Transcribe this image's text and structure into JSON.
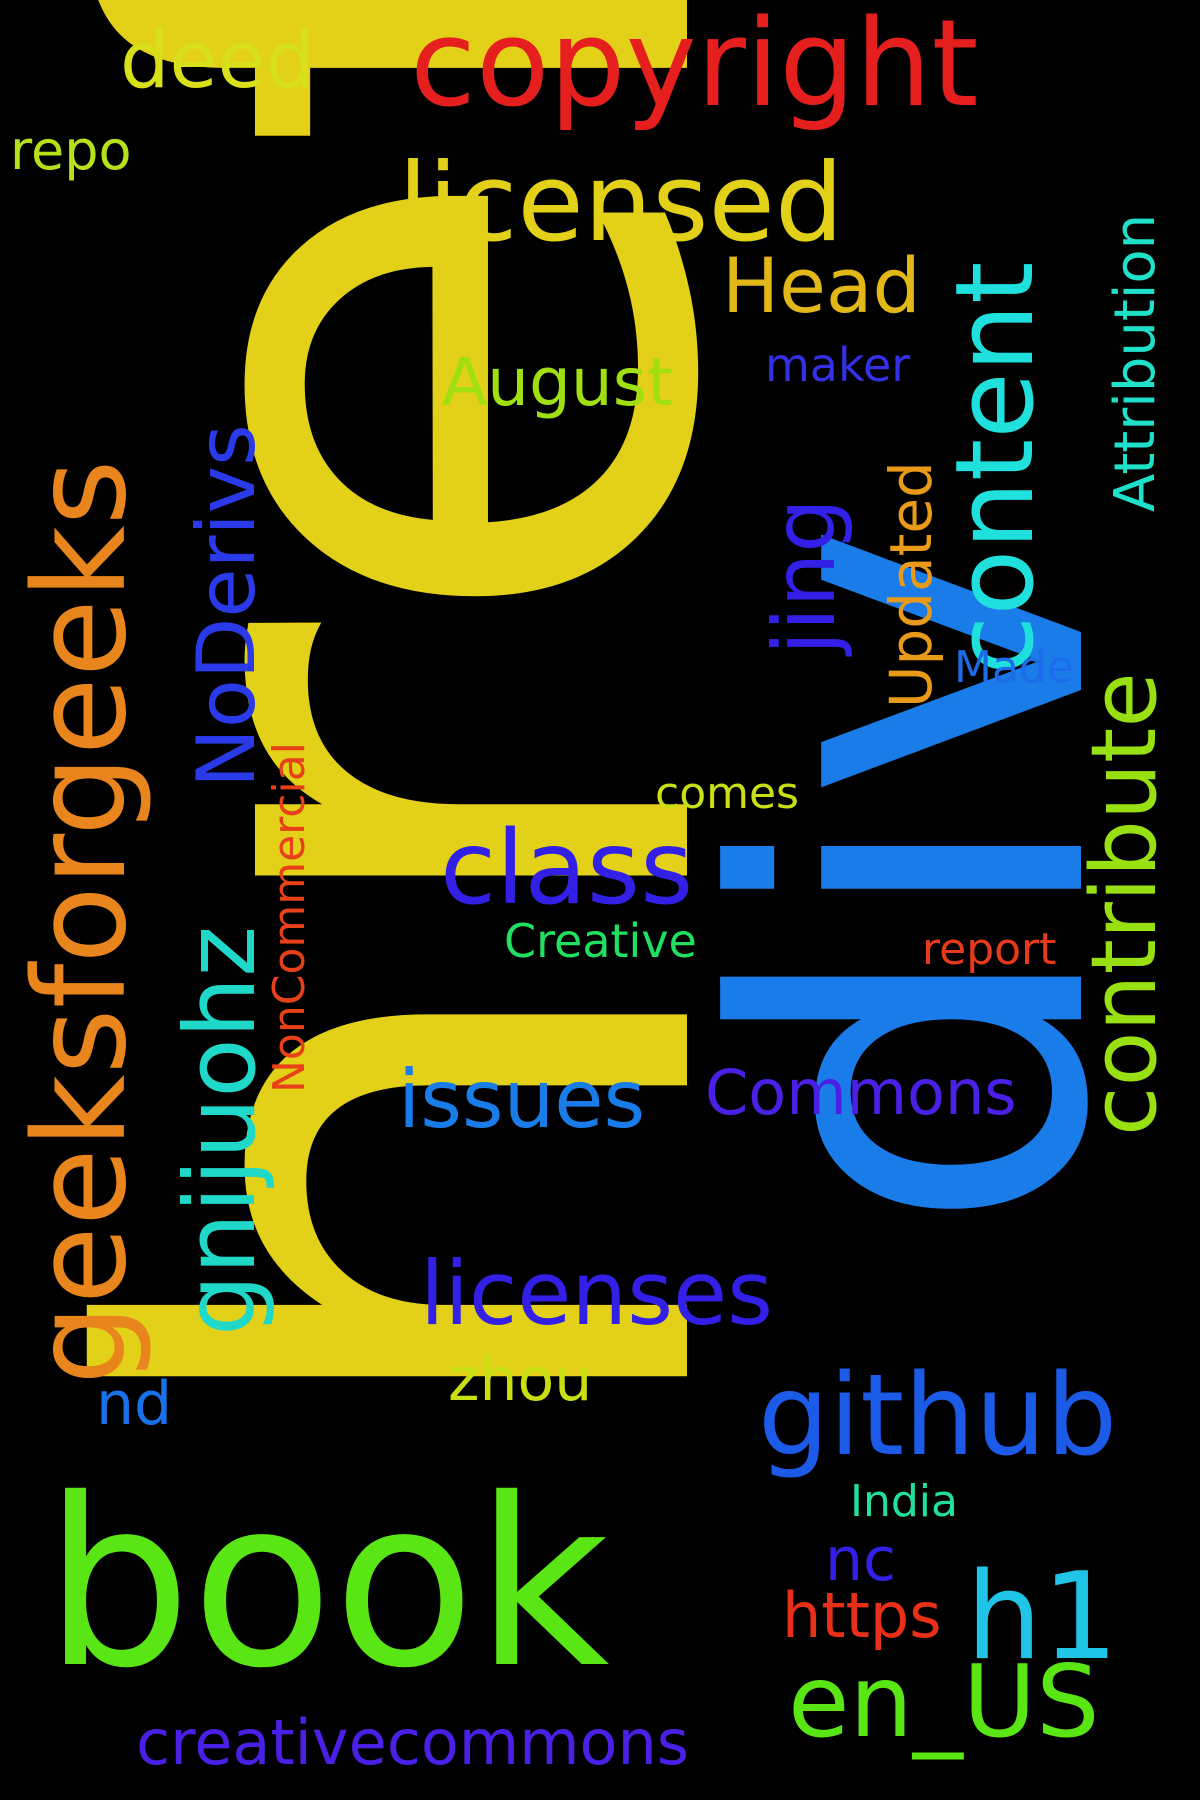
{
  "words": [
    {
      "text": "href",
      "color": "#e2d118",
      "rotated": true
    },
    {
      "text": "div",
      "color": "#1a7ce8",
      "rotated": true
    },
    {
      "text": "book",
      "color": "#5ae615",
      "rotated": false
    },
    {
      "text": "copyright",
      "color": "#e51e1e",
      "rotated": false
    },
    {
      "text": "geeksforgeeks",
      "color": "#e8861d",
      "rotated": true
    },
    {
      "text": "licensed",
      "color": "#e2d118",
      "rotated": false
    },
    {
      "text": "content",
      "color": "#1fe0dc",
      "rotated": true
    },
    {
      "text": "github",
      "color": "#1c5ae8",
      "rotated": false
    },
    {
      "text": "gnijuohz",
      "color": "#20d8c8",
      "rotated": true
    },
    {
      "text": "contribute",
      "color": "#98e012",
      "rotated": true
    },
    {
      "text": "en_US",
      "color": "#5ae615",
      "rotated": false
    },
    {
      "text": "class",
      "color": "#3320e6",
      "rotated": false
    },
    {
      "text": "licenses",
      "color": "#3320e6",
      "rotated": false
    },
    {
      "text": "h1",
      "color": "#1fc4e6",
      "rotated": false
    },
    {
      "text": "NoDerivs",
      "color": "#2a3ae8",
      "rotated": true
    },
    {
      "text": "Attribution",
      "color": "#1fe0c8",
      "rotated": true
    },
    {
      "text": "issues",
      "color": "#1a7ce8",
      "rotated": false
    },
    {
      "text": "deed",
      "color": "#d8e01a",
      "rotated": false
    },
    {
      "text": "creativecommons",
      "color": "#4a20e6",
      "rotated": false
    },
    {
      "text": "Head",
      "color": "#e2b818",
      "rotated": false
    },
    {
      "text": "jing",
      "color": "#3320e6",
      "rotated": true
    },
    {
      "text": "Commons",
      "color": "#4a20e6",
      "rotated": false
    },
    {
      "text": "August",
      "color": "#a0e012",
      "rotated": false
    },
    {
      "text": "https",
      "color": "#e83018",
      "rotated": false
    },
    {
      "text": "Updated",
      "color": "#e89a18",
      "rotated": true
    },
    {
      "text": "zhou",
      "color": "#c8e012",
      "rotated": false
    },
    {
      "text": "NonCommercial",
      "color": "#e84018",
      "rotated": true
    },
    {
      "text": "repo",
      "color": "#b8e01a",
      "rotated": false
    },
    {
      "text": "nd",
      "color": "#1a70e8",
      "rotated": false
    },
    {
      "text": "nc",
      "color": "#3320e6",
      "rotated": false
    },
    {
      "text": "Creative",
      "color": "#20e060",
      "rotated": false
    },
    {
      "text": "comes",
      "color": "#c8e012",
      "rotated": false
    },
    {
      "text": "report",
      "color": "#e83a1a",
      "rotated": false
    },
    {
      "text": "maker",
      "color": "#3330e6",
      "rotated": false
    },
    {
      "text": "Made",
      "color": "#1a6ce8",
      "rotated": false
    },
    {
      "text": "India",
      "color": "#20e0a0",
      "rotated": false
    }
  ]
}
